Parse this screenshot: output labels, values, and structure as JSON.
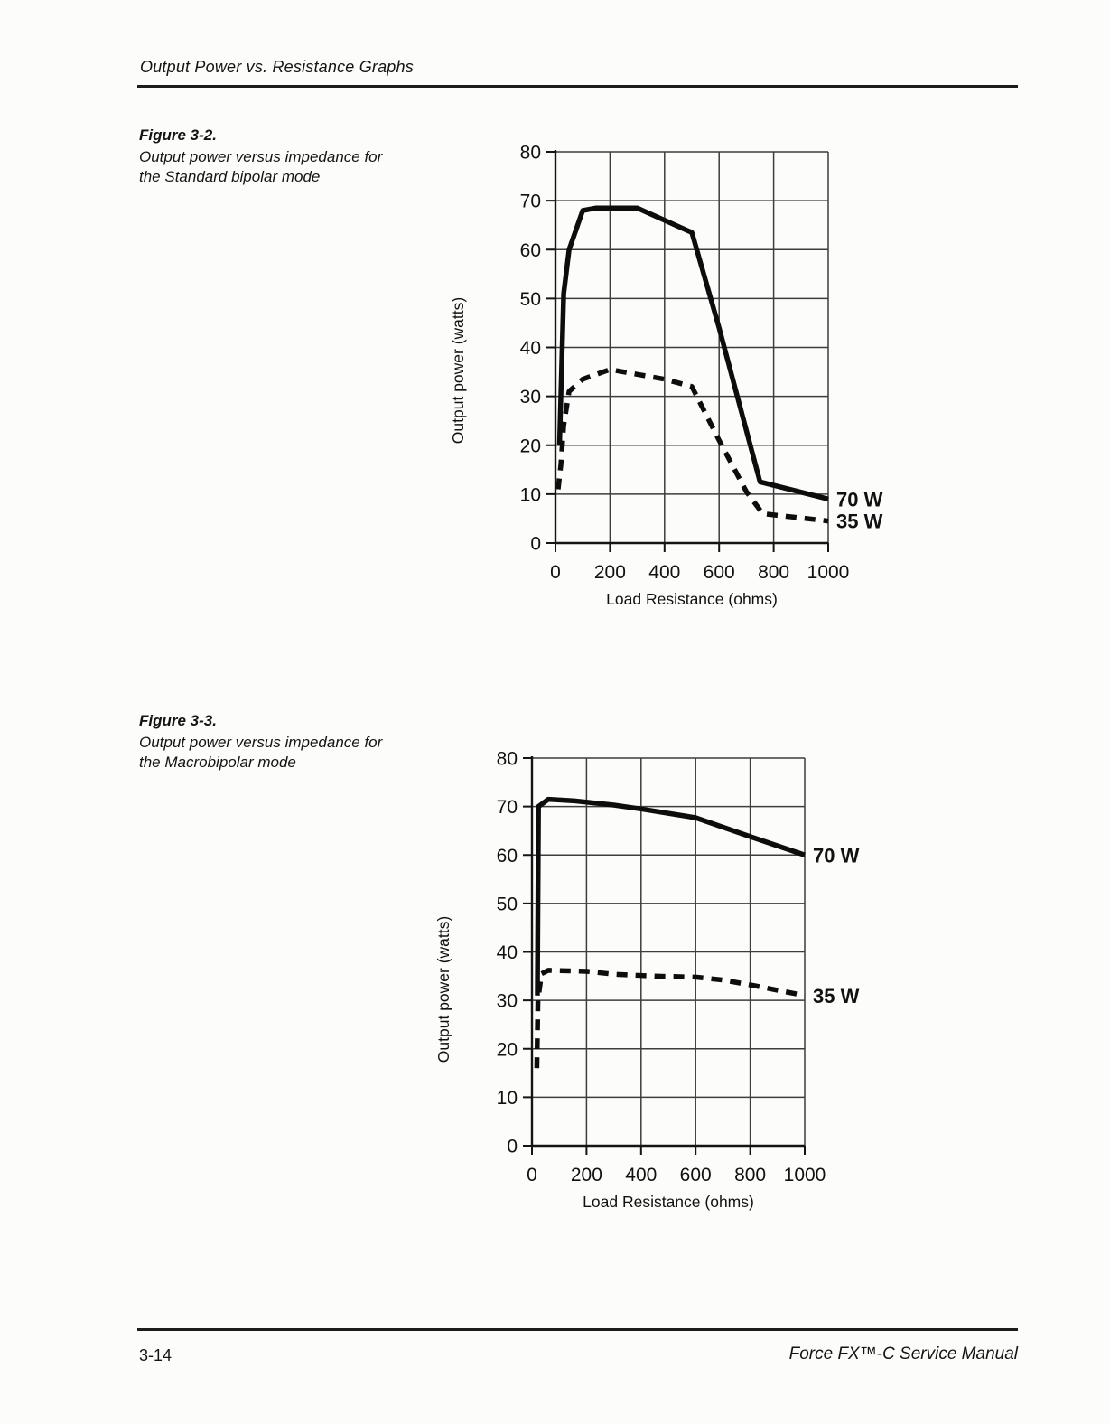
{
  "page": {
    "header": "Output Power vs. Resistance Graphs",
    "footer_left": "3-14",
    "footer_right": "Force FX™-C Service Manual"
  },
  "figures": [
    {
      "caption_title": "Figure 3-2.",
      "caption_lines": [
        "Output power versus impedance for",
        "the Standard bipolar mode"
      ]
    },
    {
      "caption_title": "Figure 3-3.",
      "caption_lines": [
        "Output power versus impedance for",
        "the Macrobipolar mode"
      ]
    }
  ],
  "chart_data": [
    {
      "type": "line",
      "title": "Output power versus impedance for the Standard bipolar mode",
      "xlabel": "Load Resistance (ohms)",
      "ylabel": "Output power (watts)",
      "xlim": [
        0,
        1000
      ],
      "ylim": [
        0,
        80
      ],
      "xticks": [
        0,
        200,
        400,
        600,
        800,
        1000
      ],
      "yticks": [
        0,
        10,
        20,
        30,
        40,
        50,
        60,
        70,
        80
      ],
      "grid": true,
      "legend_position": "right-of-curve-end",
      "series": [
        {
          "name": "70 W",
          "style": "solid",
          "points": [
            [
              15,
              20
            ],
            [
              30,
              51
            ],
            [
              50,
              60
            ],
            [
              100,
              68
            ],
            [
              150,
              68.5
            ],
            [
              300,
              68.5
            ],
            [
              400,
              66
            ],
            [
              500,
              63.5
            ],
            [
              600,
              44
            ],
            [
              750,
              12.5
            ],
            [
              1000,
              9
            ]
          ]
        },
        {
          "name": "35 W",
          "style": "dashed",
          "points": [
            [
              10,
              11
            ],
            [
              20,
              16
            ],
            [
              30,
              24
            ],
            [
              50,
              31
            ],
            [
              100,
              33.5
            ],
            [
              200,
              35.5
            ],
            [
              300,
              34.5
            ],
            [
              400,
              33.5
            ],
            [
              500,
              32
            ],
            [
              600,
              21
            ],
            [
              700,
              10.5
            ],
            [
              760,
              6
            ],
            [
              1000,
              4.5
            ]
          ]
        }
      ]
    },
    {
      "type": "line",
      "title": "Output power versus impedance for the Macrobipolar mode",
      "xlabel": "Load Resistance (ohms)",
      "ylabel": "Output power (watts)",
      "xlim": [
        0,
        1000
      ],
      "ylim": [
        0,
        80
      ],
      "xticks": [
        0,
        200,
        400,
        600,
        800,
        1000
      ],
      "yticks": [
        0,
        10,
        20,
        30,
        40,
        50,
        60,
        70,
        80
      ],
      "grid": true,
      "legend_position": "right-of-curve-end",
      "series": [
        {
          "name": "70 W",
          "style": "solid",
          "points": [
            [
              20,
              31
            ],
            [
              24,
              70
            ],
            [
              60,
              71.5
            ],
            [
              150,
              71.2
            ],
            [
              300,
              70.3
            ],
            [
              400,
              69.5
            ],
            [
              600,
              67.7
            ],
            [
              800,
              63.8
            ],
            [
              1000,
              60
            ]
          ]
        },
        {
          "name": "35 W",
          "style": "dashed",
          "points": [
            [
              18,
              16
            ],
            [
              22,
              30
            ],
            [
              35,
              35.5
            ],
            [
              60,
              36.2
            ],
            [
              200,
              36
            ],
            [
              300,
              35.4
            ],
            [
              450,
              35
            ],
            [
              600,
              34.8
            ],
            [
              700,
              34.2
            ],
            [
              800,
              33.2
            ],
            [
              1000,
              31
            ]
          ]
        }
      ]
    }
  ]
}
